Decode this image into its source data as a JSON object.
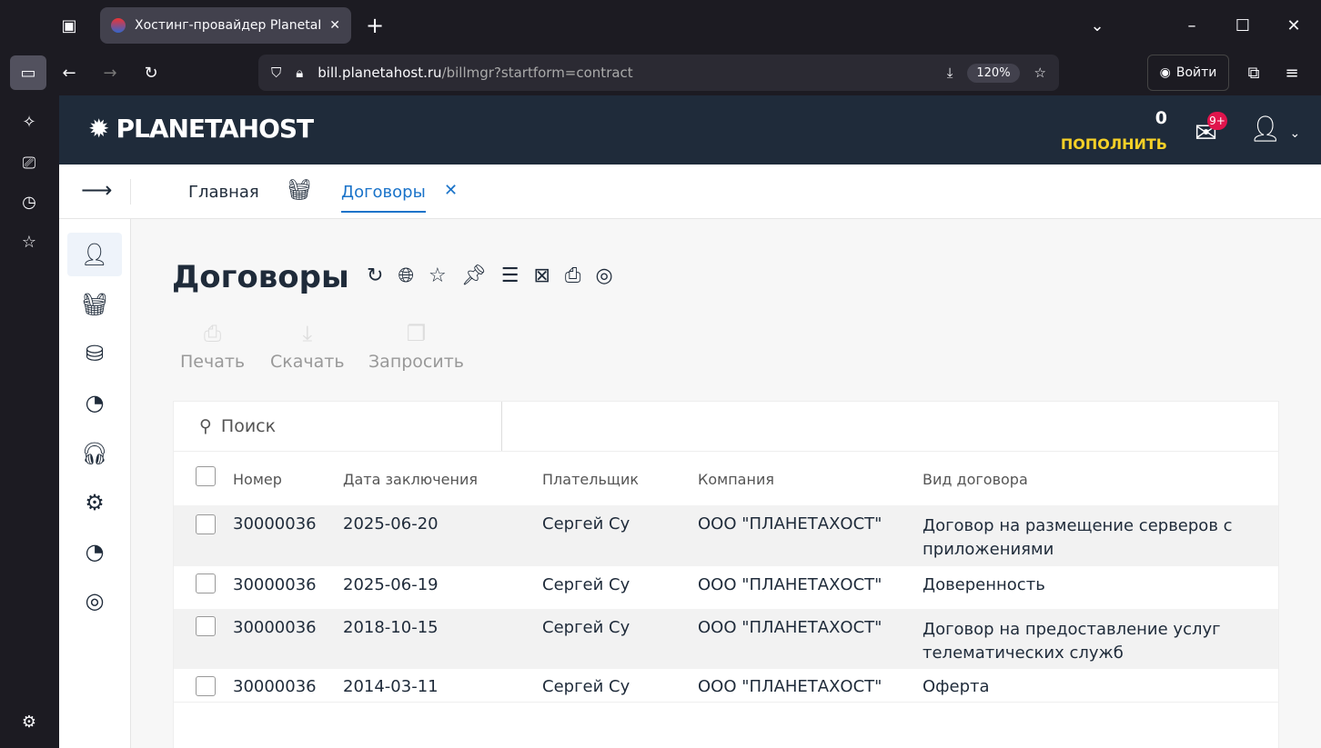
{
  "browser": {
    "tab_title": "Хостинг-провайдер PlanetaHost",
    "url_host": "bill.planetahost.ru",
    "url_path": "/billmgr?startform=contract",
    "zoom": "120%",
    "signin": "Войти"
  },
  "header": {
    "logo": "PLANETAHOST",
    "balance": "0",
    "topup": "ПОПОЛНИТЬ",
    "badge": "9+"
  },
  "tabs": [
    {
      "label": "Главная"
    },
    {
      "label": "Договоры"
    }
  ],
  "page": {
    "title": "Договоры"
  },
  "toolbar": [
    {
      "label": "Печать",
      "icon": "printer-icon"
    },
    {
      "label": "Скачать",
      "icon": "download-icon"
    },
    {
      "label": "Запросить",
      "icon": "copy-icon"
    }
  ],
  "search": {
    "placeholder": "Поиск"
  },
  "table": {
    "columns": [
      "Номер",
      "Дата заключения",
      "Плательщик",
      "Компания",
      "Вид договора"
    ],
    "rows": [
      [
        "30000036",
        "2025-06-20",
        "Сергей Су",
        "ООО \"ПЛАНЕТАХОСТ\"",
        "Договор на размещение серверов с приложениями"
      ],
      [
        "30000036",
        "2025-06-19",
        "Сергей Су",
        "ООО \"ПЛАНЕТАХОСТ\"",
        "Доверенность"
      ],
      [
        "30000036",
        "2018-10-15",
        "Сергей Су",
        "ООО \"ПЛАНЕТАХОСТ\"",
        "Договор на предоставление услуг телематических служб"
      ],
      [
        "30000036",
        "2014-03-11",
        "Сергей Су",
        "ООО \"ПЛАНЕТАХОСТ\"",
        "Оферта"
      ]
    ]
  },
  "colors": {
    "header_bg": "#1f2b3a",
    "accent": "#1a73c9",
    "topup": "#f5d027",
    "badge": "#e0144c"
  }
}
